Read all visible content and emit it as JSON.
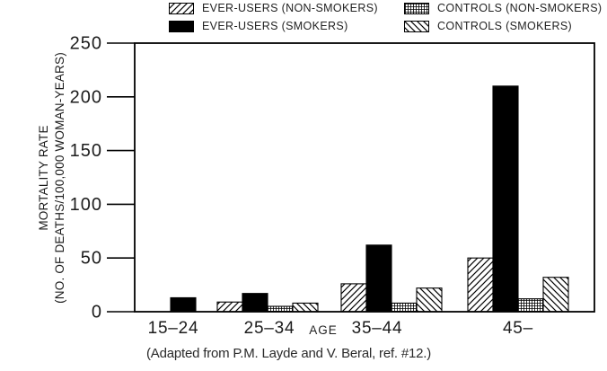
{
  "caption": "(Adapted from P.M. Layde and V. Beral, ref. #12.)",
  "chart_data": {
    "type": "bar",
    "title": "",
    "xlabel": "AGE",
    "ylabel_line1": "MORTALITY RATE",
    "ylabel_line2": "(NO. OF DEATHS/100,000 WOMAN-YEARS)",
    "categories": [
      "15–24",
      "25–34",
      "35–44",
      "45–"
    ],
    "series": [
      {
        "name": "EVER-USERS (NON-SMOKERS)",
        "pattern": "hatch-forward",
        "values": [
          0,
          9,
          26,
          50
        ]
      },
      {
        "name": "EVER-USERS (SMOKERS)",
        "pattern": "solid",
        "values": [
          13,
          17,
          62,
          210
        ]
      },
      {
        "name": "CONTROLS (NON-SMOKERS)",
        "pattern": "grid",
        "values": [
          0,
          5,
          8,
          12
        ]
      },
      {
        "name": "CONTROLS (SMOKERS)",
        "pattern": "hatch-back",
        "values": [
          0,
          8,
          22,
          32
        ]
      }
    ],
    "yticks": [
      0,
      50,
      100,
      150,
      200,
      250
    ],
    "ylim": [
      0,
      250
    ],
    "grid": false,
    "legend_position": "top",
    "bar_color": "#000000",
    "line_color": "#000000",
    "background_color": "#ffffff"
  }
}
